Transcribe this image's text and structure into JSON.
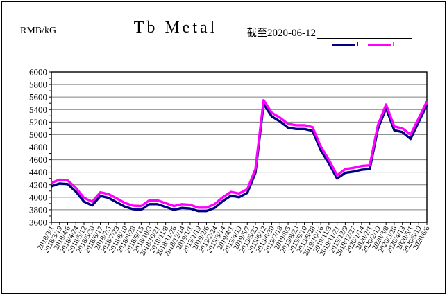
{
  "header": {
    "units_label": "RMB/kG",
    "title": "Tb Metal",
    "as_of": "截至2020-06-12"
  },
  "legend": {
    "items": [
      {
        "label": "L",
        "color": "#000080"
      },
      {
        "label": "H",
        "color": "#ff00ff"
      }
    ]
  },
  "chart_data": {
    "type": "line",
    "title": "Tb Metal",
    "subtitle": "截至2020-06-12",
    "ylabel": "RMB/kG",
    "ylim": [
      3600,
      6000
    ],
    "ytick_step": 200,
    "grid": true,
    "legend_position": "top-right",
    "x_label_rotation": -60,
    "categories": [
      "2018/3/1",
      "2018/3/19",
      "2018/4/6",
      "2018/4/24",
      "2018/5/12",
      "2018/5/30",
      "2018/6/17",
      "2018/7/5",
      "2018/7/23",
      "2018/8/10",
      "2018/8/28",
      "2018/9/15",
      "2018/10/3",
      "2018/10/21",
      "2018/11/8",
      "2018/11/26",
      "2018/12/14",
      "2019/1/1",
      "2019/1/19",
      "2019/2/6",
      "2019/2/24",
      "2019/3/14",
      "2019/4/1",
      "2019/4/19",
      "2019/5/7",
      "2019/5/25",
      "2019/6/12",
      "2019/6/30",
      "2019/7/18",
      "2019/8/5",
      "2019/8/23",
      "2019/9/10",
      "2019/9/28",
      "2019/10/16",
      "2019/11/3",
      "2019/11/21",
      "2019/12/9",
      "2019/12/27",
      "2020/1/14",
      "2020/2/1",
      "2020/2/19",
      "2020/3/8",
      "2020/3/26",
      "2020/4/13",
      "2020/5/1",
      "2020/5/19",
      "2020/6/6"
    ],
    "series": [
      {
        "name": "L",
        "color": "#000080",
        "values": [
          4175,
          4220,
          4210,
          4090,
          3930,
          3870,
          4020,
          3990,
          3920,
          3850,
          3810,
          3800,
          3890,
          3890,
          3845,
          3800,
          3830,
          3820,
          3780,
          3780,
          3830,
          3940,
          4025,
          4000,
          4070,
          4390,
          5490,
          5290,
          5210,
          5110,
          5090,
          5090,
          5060,
          4750,
          4540,
          4300,
          4390,
          4410,
          4440,
          4450,
          5090,
          5420,
          5070,
          5040,
          4930,
          5200,
          5470
        ]
      },
      {
        "name": "H",
        "color": "#ff00ff",
        "values": [
          4230,
          4280,
          4270,
          4150,
          3990,
          3930,
          4080,
          4050,
          3980,
          3910,
          3865,
          3860,
          3950,
          3950,
          3905,
          3860,
          3890,
          3880,
          3835,
          3835,
          3890,
          4000,
          4085,
          4060,
          4130,
          4450,
          5550,
          5350,
          5270,
          5170,
          5150,
          5150,
          5120,
          4810,
          4600,
          4350,
          4450,
          4470,
          4500,
          4510,
          5150,
          5480,
          5130,
          5100,
          5000,
          5260,
          5530
        ]
      }
    ]
  }
}
